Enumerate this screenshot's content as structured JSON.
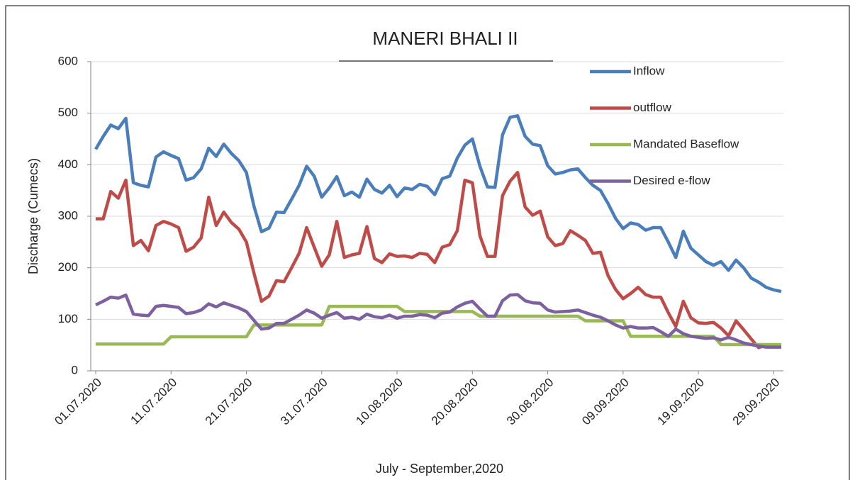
{
  "chart_data": {
    "type": "line",
    "title": "MANERI BHALI II",
    "x_label": "July - September,2020",
    "y_label": "Discharge (Cumecs)",
    "categories": [
      "01.07.2020",
      null,
      null,
      null,
      null,
      null,
      null,
      null,
      null,
      null,
      "11.07.2020",
      null,
      null,
      null,
      null,
      null,
      null,
      null,
      null,
      null,
      "21.07.2020",
      null,
      null,
      null,
      null,
      null,
      null,
      null,
      null,
      null,
      "31.07.2020",
      null,
      null,
      null,
      null,
      null,
      null,
      null,
      null,
      null,
      "10.08.2020",
      null,
      null,
      null,
      null,
      null,
      null,
      null,
      null,
      null,
      "20.08.2020",
      null,
      null,
      null,
      null,
      null,
      null,
      null,
      null,
      null,
      "30.08.2020",
      null,
      null,
      null,
      null,
      null,
      null,
      null,
      null,
      null,
      "09.09.2020",
      null,
      null,
      null,
      null,
      null,
      null,
      null,
      null,
      null,
      "19.09.2020",
      null,
      null,
      null,
      null,
      null,
      null,
      null,
      null,
      null,
      "29.09.2020",
      null
    ],
    "series": [
      {
        "name": "Inflow",
        "color": "#4a7ebb",
        "values": [
          430,
          455,
          477,
          470,
          490,
          365,
          360,
          357,
          415,
          425,
          418,
          412,
          370,
          375,
          392,
          432,
          416,
          440,
          422,
          408,
          385,
          320,
          270,
          277,
          308,
          307,
          333,
          360,
          397,
          378,
          337,
          355,
          377,
          340,
          347,
          337,
          372,
          352,
          345,
          360,
          338,
          355,
          352,
          362,
          358,
          342,
          373,
          378,
          413,
          438,
          450,
          397,
          357,
          356,
          458,
          492,
          495,
          455,
          440,
          437,
          398,
          382,
          385,
          390,
          392,
          375,
          360,
          350,
          325,
          296,
          276,
          287,
          284,
          273,
          278,
          278,
          250,
          220,
          271,
          238,
          225,
          212,
          205,
          212,
          195,
          215,
          200,
          180,
          172,
          162,
          157,
          154
        ]
      },
      {
        "name": "outflow",
        "color": "#be4b48",
        "values": [
          295,
          295,
          348,
          335,
          370,
          243,
          253,
          233,
          282,
          290,
          285,
          278,
          232,
          240,
          258,
          337,
          282,
          308,
          288,
          275,
          250,
          190,
          135,
          145,
          175,
          173,
          200,
          228,
          278,
          240,
          203,
          225,
          290,
          220,
          225,
          228,
          280,
          218,
          210,
          227,
          222,
          223,
          220,
          228,
          226,
          210,
          240,
          245,
          272,
          370,
          365,
          262,
          222,
          222,
          340,
          368,
          385,
          318,
          302,
          310,
          260,
          243,
          247,
          272,
          263,
          253,
          228,
          230,
          185,
          158,
          140,
          150,
          162,
          148,
          143,
          143,
          113,
          86,
          135,
          103,
          93,
          92,
          94,
          83,
          68,
          97,
          80,
          62,
          45,
          50,
          47,
          47
        ]
      },
      {
        "name": "Mandated Baseflow",
        "color": "#98b954",
        "values": [
          52,
          52,
          52,
          52,
          52,
          52,
          52,
          52,
          52,
          52,
          66,
          66,
          66,
          66,
          66,
          66,
          66,
          66,
          66,
          66,
          66,
          89,
          89,
          89,
          89,
          89,
          89,
          89,
          89,
          89,
          89,
          125,
          125,
          125,
          125,
          125,
          125,
          125,
          125,
          125,
          125,
          115,
          115,
          115,
          115,
          115,
          115,
          115,
          115,
          115,
          115,
          106,
          106,
          106,
          106,
          106,
          106,
          106,
          106,
          106,
          106,
          106,
          106,
          106,
          106,
          97,
          97,
          97,
          97,
          97,
          97,
          67,
          67,
          67,
          67,
          67,
          67,
          67,
          67,
          67,
          67,
          67,
          67,
          51,
          51,
          51,
          51,
          51,
          51,
          51,
          51,
          51
        ]
      },
      {
        "name": "Desired e-flow",
        "color": "#7d60a0",
        "values": [
          128,
          135,
          143,
          141,
          147,
          110,
          108,
          107,
          125,
          127,
          125,
          123,
          111,
          113,
          118,
          130,
          124,
          132,
          127,
          122,
          115,
          98,
          81,
          83,
          92,
          92,
          100,
          108,
          118,
          112,
          102,
          108,
          113,
          102,
          104,
          100,
          110,
          105,
          103,
          108,
          102,
          106,
          106,
          109,
          108,
          103,
          112,
          114,
          124,
          131,
          135,
          120,
          106,
          106,
          136,
          147,
          148,
          136,
          132,
          131,
          118,
          114,
          115,
          116,
          118,
          113,
          108,
          104,
          97,
          89,
          83,
          86,
          83,
          83,
          84,
          76,
          67,
          81,
          72,
          67,
          65,
          63,
          64,
          60,
          65,
          60,
          54,
          51,
          48,
          46,
          46,
          46
        ]
      }
    ],
    "ylim": [
      0,
      600
    ],
    "yticks": [
      0,
      100,
      200,
      300,
      400,
      500,
      600
    ],
    "grid": true,
    "legend": "top-right"
  }
}
